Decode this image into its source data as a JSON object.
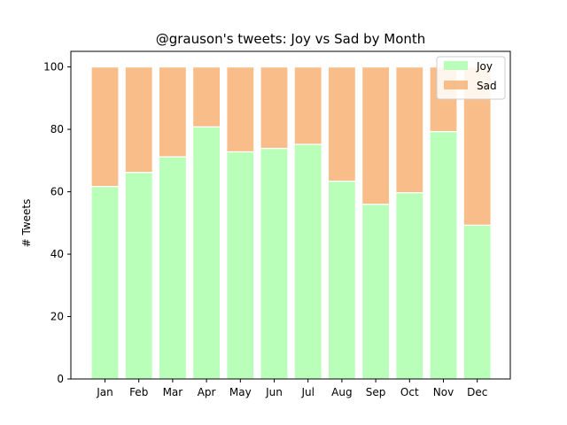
{
  "chart_data": {
    "type": "bar",
    "stacked": true,
    "title": "@grauson's tweets: Joy vs Sad by Month",
    "xlabel": "",
    "ylabel": "# Tweets",
    "ylim": [
      0,
      105
    ],
    "yticks": [
      0,
      20,
      40,
      60,
      80,
      100
    ],
    "grid": false,
    "legend_position": "top-right",
    "categories": [
      "Jan",
      "Feb",
      "Mar",
      "Apr",
      "May",
      "Jun",
      "Jul",
      "Aug",
      "Sep",
      "Oct",
      "Nov",
      "Dec"
    ],
    "series": [
      {
        "name": "Joy",
        "color": "#b9ffb9",
        "values": [
          61.7,
          66.2,
          71.2,
          80.8,
          72.8,
          73.9,
          75.2,
          63.4,
          56.0,
          59.7,
          79.3,
          49.3
        ]
      },
      {
        "name": "Sad",
        "color": "#f9bd89",
        "values": [
          38.3,
          33.8,
          28.8,
          19.2,
          27.2,
          26.1,
          24.8,
          36.6,
          44.0,
          40.3,
          20.7,
          50.7
        ]
      }
    ]
  }
}
